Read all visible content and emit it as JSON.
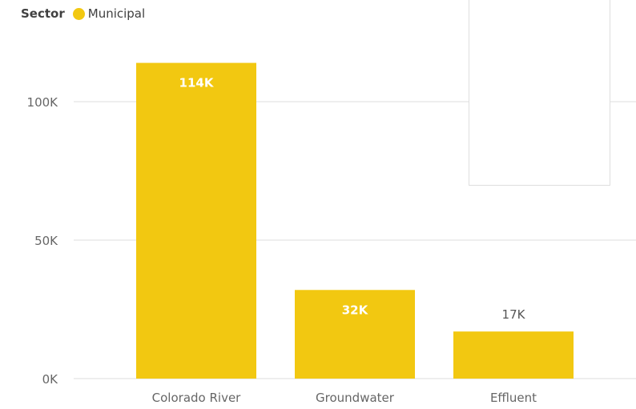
{
  "legend": {
    "title": "Sector",
    "items": [
      {
        "label": "Municipal",
        "color": "#F2C811"
      }
    ]
  },
  "colors": {
    "bar": "#F2C811",
    "gridline": "#E9E9E9",
    "axis_text": "#666666",
    "inside_label": "#FFFFFF",
    "outside_label": "#555555"
  },
  "chart_data": {
    "type": "bar",
    "categories": [
      "Colorado River",
      "Groundwater",
      "Effluent"
    ],
    "series": [
      {
        "name": "Municipal",
        "values": [
          114000,
          32000,
          17000
        ],
        "data_labels": [
          "114K",
          "32K",
          "17K"
        ]
      }
    ],
    "y_ticks": [
      0,
      50000,
      100000
    ],
    "y_tick_labels": [
      "0K",
      "50K",
      "100K"
    ],
    "ylim": [
      0,
      125000
    ],
    "grid": true,
    "legend_position": "top-left",
    "xlabel": "",
    "ylabel": ""
  }
}
